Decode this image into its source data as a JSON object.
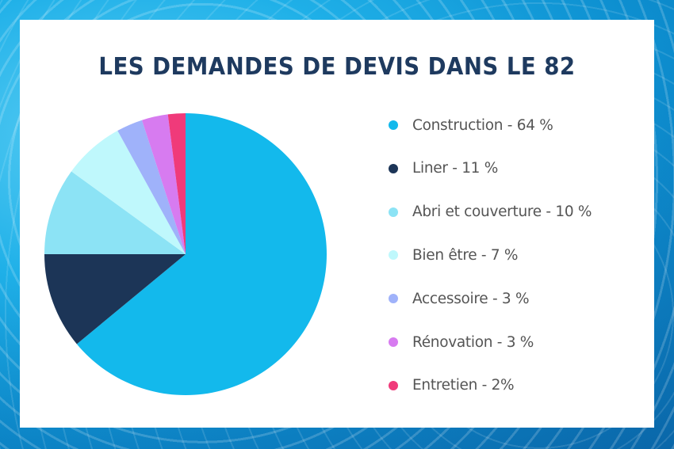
{
  "chart_data": {
    "type": "pie",
    "title": "LES DEMANDES DE DEVIS DANS LE 82",
    "start_angle": "12 o'clock",
    "direction": "clockwise",
    "legend_position": "right",
    "slices": [
      {
        "name": "Construction",
        "value": 64,
        "label": "Construction - 64 %",
        "color": "#13b9ec"
      },
      {
        "name": "Liner",
        "value": 11,
        "label": "Liner - 11 %",
        "color": "#1c3557"
      },
      {
        "name": "Abri et couverture",
        "value": 10,
        "label": "Abri et couverture - 10 %",
        "color": "#8ce3f5"
      },
      {
        "name": "Bien être",
        "value": 7,
        "label": "Bien être - 7 %",
        "color": "#bff8fc"
      },
      {
        "name": "Accessoire",
        "value": 3,
        "label": "Accessoire - 3 %",
        "color": "#9fb2fa"
      },
      {
        "name": "Rénovation",
        "value": 3,
        "label": "Rénovation - 3 %",
        "color": "#d77bf0"
      },
      {
        "name": "Entretien",
        "value": 2,
        "label": "Entretien - 2%",
        "color": "#f03a7a"
      }
    ]
  }
}
